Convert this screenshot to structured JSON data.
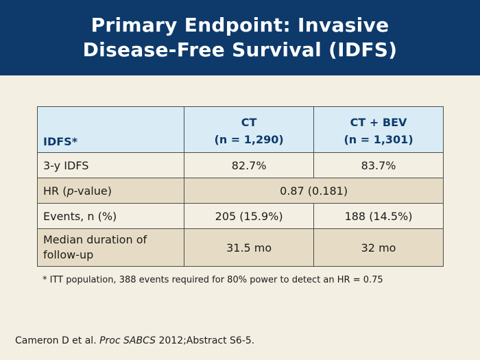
{
  "slide": {
    "title_line1": "Primary Endpoint: Invasive",
    "title_line2": "Disease-Free Survival (IDFS)"
  },
  "table": {
    "header": {
      "col0": "IDFS*",
      "col1_line1": "CT",
      "col1_line2": "(n = 1,290)",
      "col2_line1": "CT + BEV",
      "col2_line2": "(n = 1,301)"
    },
    "rows": [
      {
        "label": "3-y IDFS",
        "ct": "82.7%",
        "ct_bev": "83.7%"
      },
      {
        "label_pre": "HR (",
        "label_italic": "p",
        "label_post": "-value)",
        "merged_value": "0.87 (0.181)"
      },
      {
        "label": "Events, n (%)",
        "ct": "205 (15.9%)",
        "ct_bev": "188 (14.5%)"
      },
      {
        "label_line1": "Median duration of",
        "label_line2": "follow-up",
        "ct": "31.5 mo",
        "ct_bev": "32 mo"
      }
    ]
  },
  "footnote": "* ITT population, 388 events required for 80% power to detect an HR = 0.75",
  "citation": {
    "authors": "Cameron D et al. ",
    "journal": "Proc SABCS",
    "details": " 2012;Abstract S6-5."
  },
  "colors": {
    "title_bar": "#0d3a6b",
    "background": "#f3efe2",
    "header_fill": "#d9ecf5",
    "row_shaded": "#e6dcc5"
  }
}
